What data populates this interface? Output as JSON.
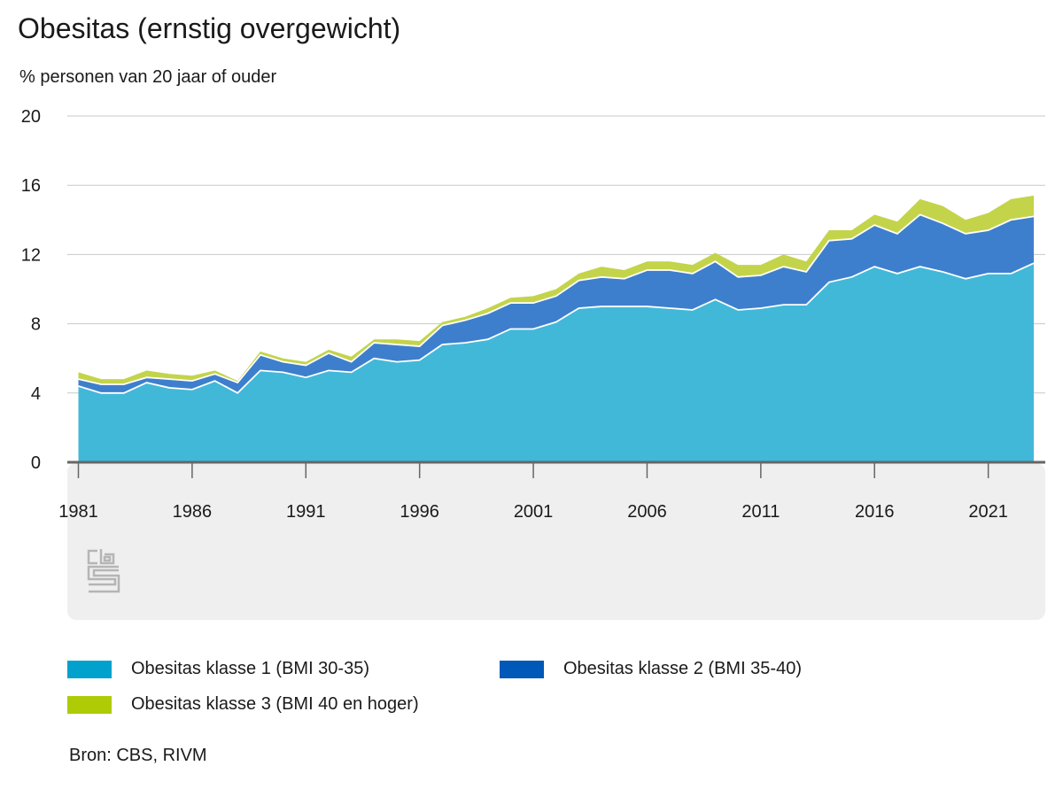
{
  "title": "Obesitas (ernstig overgewicht)",
  "subtitle": "% personen van 20 jaar of ouder",
  "source": "Bron: CBS, RIVM",
  "colors": {
    "class1": "#42b8d9",
    "class2": "#3d7fcc",
    "class3": "#c3d44a",
    "legend_class1": "#00a1cd",
    "legend_class2": "#0058b8",
    "legend_class3": "#afcb05"
  },
  "logo": "cbs-logo",
  "chart_data": {
    "type": "area",
    "stacked": true,
    "title": "Obesitas (ernstig overgewicht)",
    "ylabel": "% personen van 20 jaar of ouder",
    "xlabel": "",
    "ylim": [
      0,
      20
    ],
    "yticks": [
      "0",
      "4",
      "8",
      "12",
      "16",
      "20"
    ],
    "xticks": [
      "1981",
      "1986",
      "1991",
      "1996",
      "2001",
      "2006",
      "2011",
      "2016",
      "2021"
    ],
    "x": [
      1981,
      1982,
      1983,
      1984,
      1985,
      1986,
      1987,
      1988,
      1989,
      1990,
      1991,
      1992,
      1993,
      1994,
      1995,
      1996,
      1997,
      1998,
      1999,
      2000,
      2001,
      2002,
      2003,
      2004,
      2005,
      2006,
      2007,
      2008,
      2009,
      2010,
      2011,
      2012,
      2013,
      2014,
      2015,
      2016,
      2017,
      2018,
      2019,
      2020,
      2021,
      2022,
      2023
    ],
    "grid": true,
    "legend_position": "bottom",
    "series": [
      {
        "name": "Obesitas klasse 1 (BMI 30-35)",
        "values": [
          4.4,
          4.0,
          4.0,
          4.6,
          4.3,
          4.2,
          4.7,
          4.0,
          5.3,
          5.2,
          4.9,
          5.3,
          5.2,
          6.0,
          5.8,
          5.9,
          6.8,
          6.9,
          7.1,
          7.7,
          7.7,
          8.1,
          8.9,
          9.0,
          9.0,
          9.0,
          8.9,
          8.8,
          9.4,
          8.8,
          8.9,
          9.1,
          9.1,
          10.4,
          10.7,
          11.3,
          10.9,
          11.3,
          11.0,
          10.6,
          10.9,
          10.9,
          11.5
        ]
      },
      {
        "name": "Obesitas klasse 2 (BMI 35-40)",
        "values": [
          0.4,
          0.5,
          0.5,
          0.3,
          0.5,
          0.5,
          0.4,
          0.6,
          0.9,
          0.6,
          0.7,
          1.0,
          0.6,
          0.9,
          1.0,
          0.8,
          1.1,
          1.3,
          1.5,
          1.5,
          1.5,
          1.5,
          1.6,
          1.7,
          1.6,
          2.1,
          2.2,
          2.1,
          2.2,
          1.9,
          1.9,
          2.2,
          1.9,
          2.4,
          2.2,
          2.4,
          2.3,
          3.0,
          2.8,
          2.6,
          2.5,
          3.1,
          2.7
        ]
      },
      {
        "name": "Obesitas klasse 3 (BMI 40 en hoger)",
        "values": [
          0.4,
          0.3,
          0.3,
          0.4,
          0.3,
          0.3,
          0.2,
          0.1,
          0.2,
          0.2,
          0.2,
          0.2,
          0.3,
          0.2,
          0.3,
          0.3,
          0.2,
          0.2,
          0.3,
          0.3,
          0.4,
          0.4,
          0.4,
          0.6,
          0.5,
          0.5,
          0.5,
          0.5,
          0.5,
          0.7,
          0.6,
          0.7,
          0.6,
          0.6,
          0.5,
          0.6,
          0.7,
          0.9,
          1.0,
          0.8,
          1.0,
          1.2,
          1.2
        ]
      }
    ]
  }
}
